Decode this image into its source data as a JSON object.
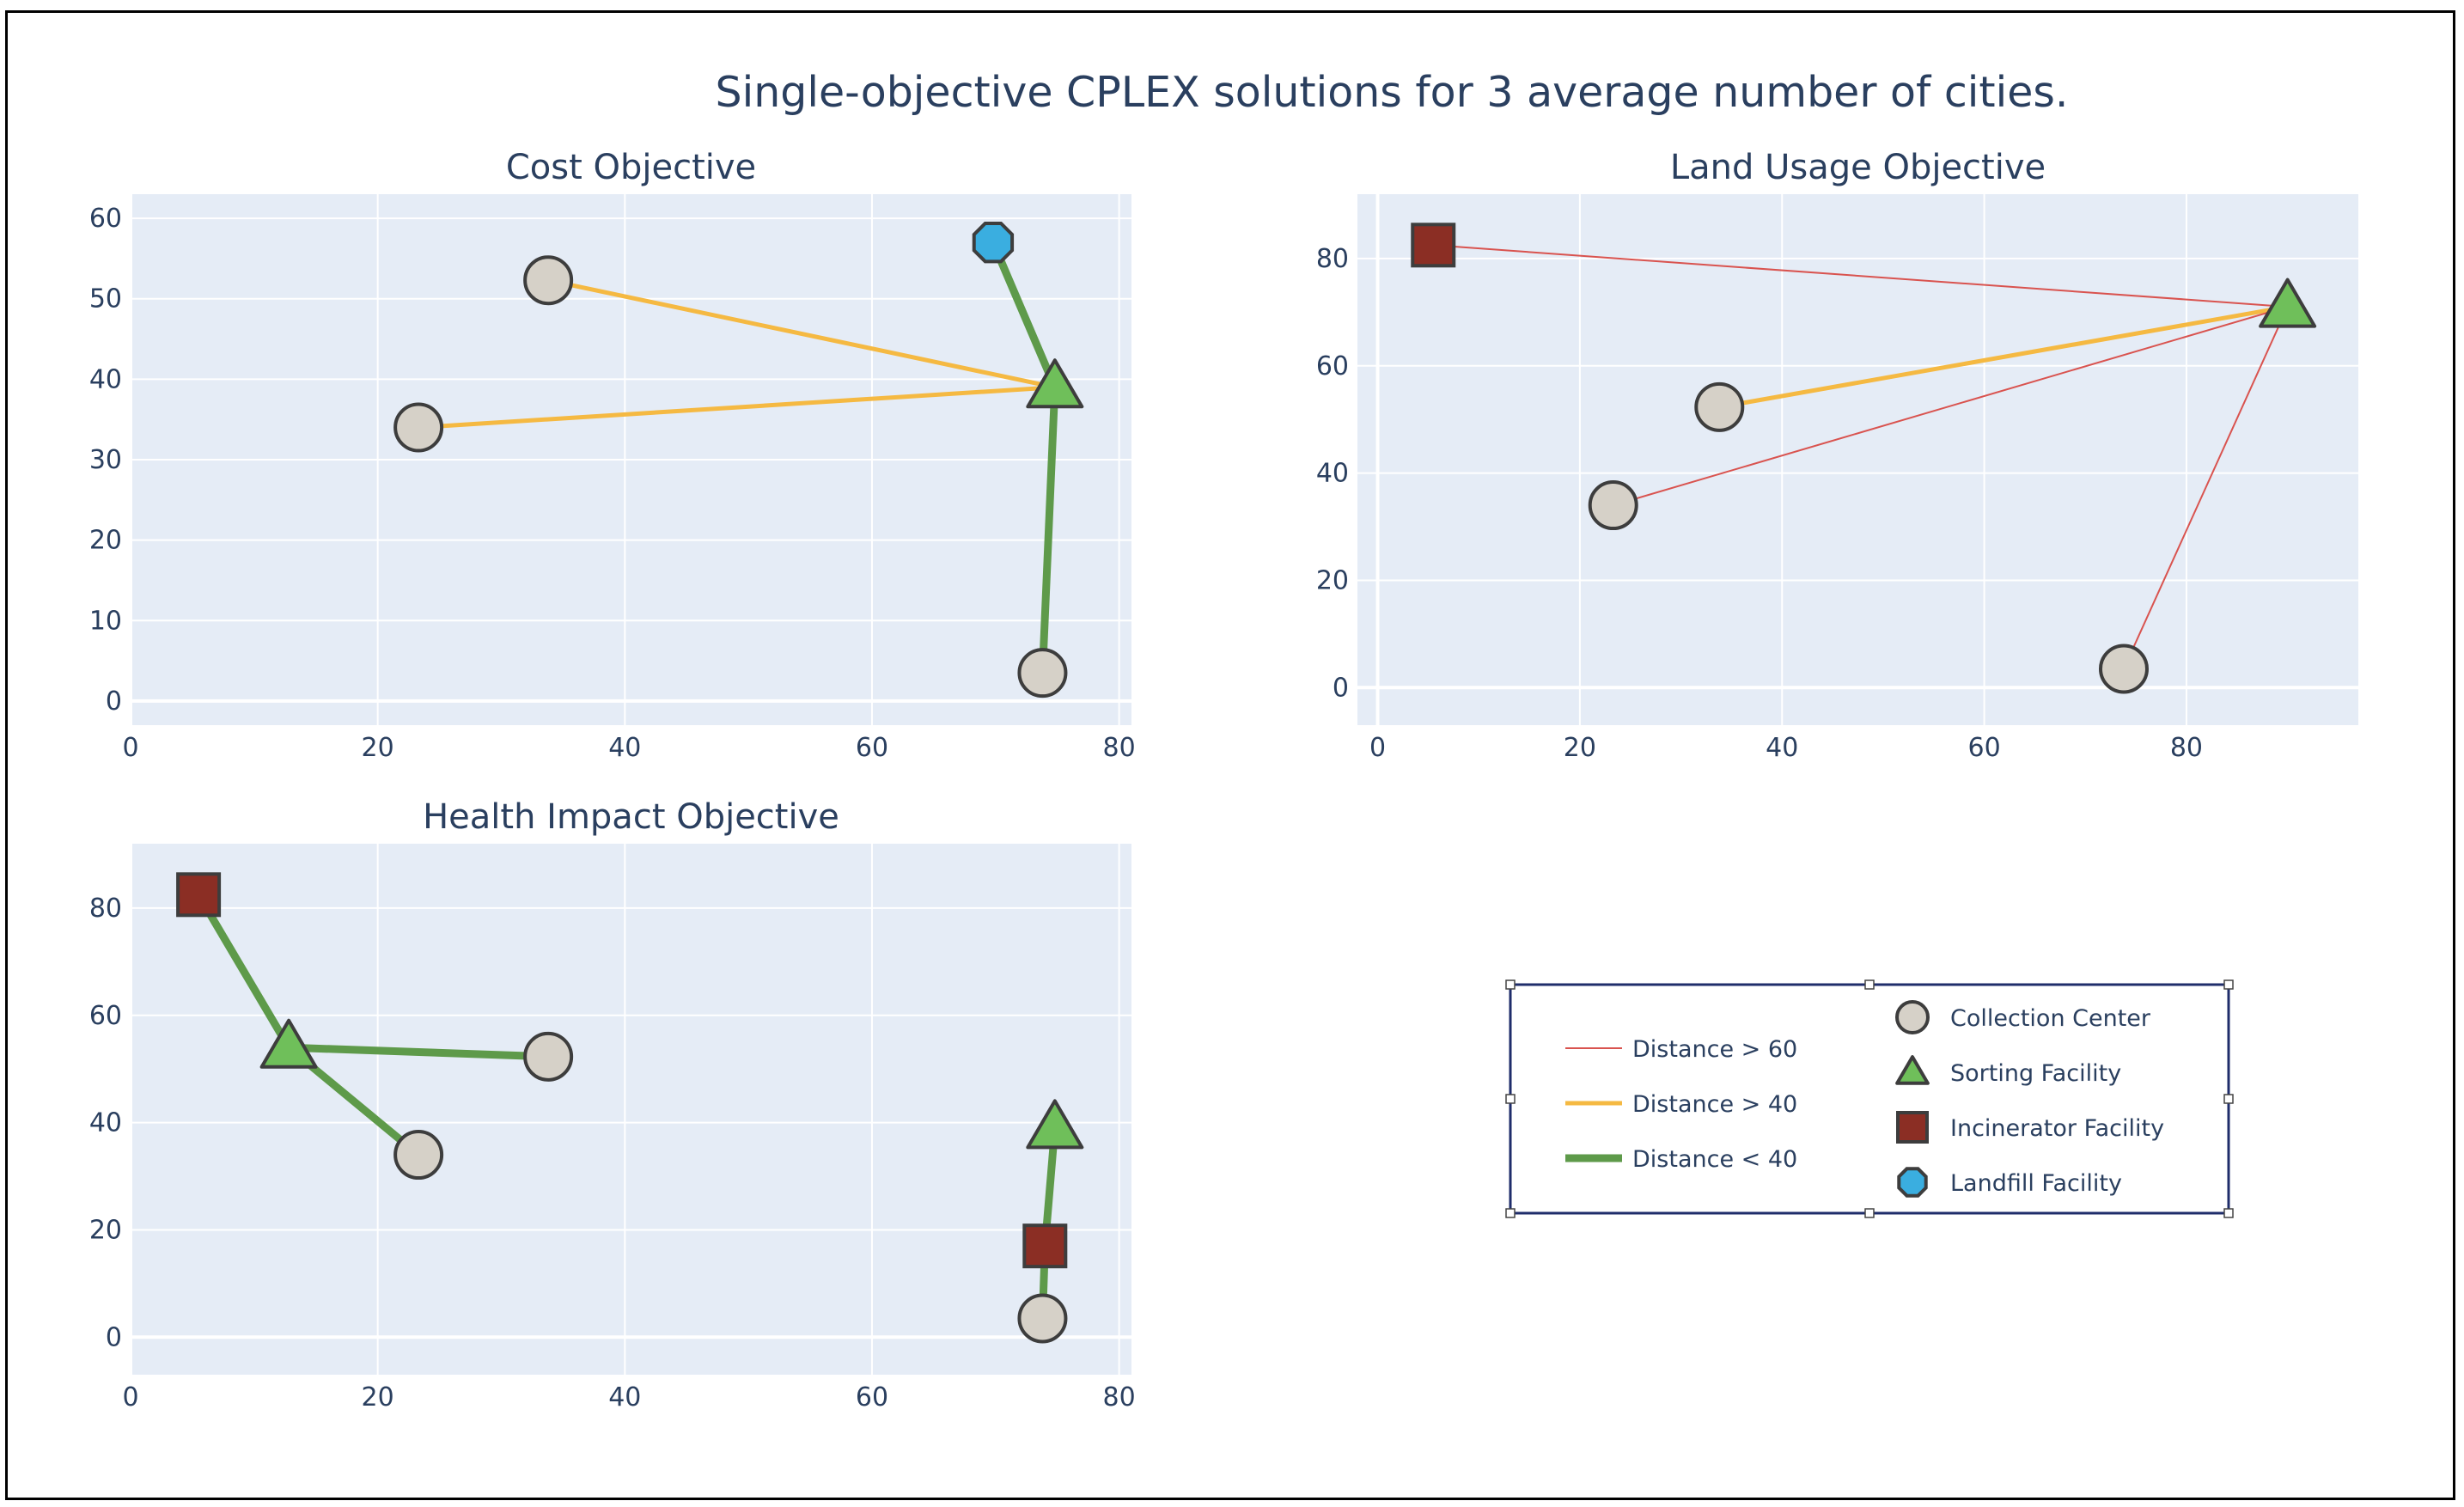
{
  "title": "Single-objective CPLEX solutions for 3 average number of cities.",
  "colors": {
    "plot_bg": "#e5ecf6",
    "grid": "#ffffff",
    "text": "#2a3f5f",
    "distance_gt_60": "#d9534f",
    "distance_gt_40": "#f5b942",
    "distance_lt_40": "#5e9a4a",
    "collection_center": "#d6d1c8",
    "sorting_facility": "#6fbf5a",
    "incinerator_facility": "#8b2e24",
    "landfill_facility": "#3aaee0",
    "marker_outline": "#3d3d3d"
  },
  "legend": {
    "lines": [
      {
        "label": "Distance > 60",
        "key": "distance_gt_60",
        "width": 2
      },
      {
        "label": "Distance > 40",
        "key": "distance_gt_40",
        "width": 5
      },
      {
        "label": "Distance < 40",
        "key": "distance_lt_40",
        "width": 9
      }
    ],
    "markers": [
      {
        "label": "Collection Center",
        "symbol": "circle",
        "key": "collection_center"
      },
      {
        "label": "Sorting Facility",
        "symbol": "triangle",
        "key": "sorting_facility"
      },
      {
        "label": "Incinerator Facility",
        "symbol": "square",
        "key": "incinerator_facility"
      },
      {
        "label": "Landfill Facility",
        "symbol": "octagon",
        "key": "landfill_facility"
      }
    ]
  },
  "chart_data": [
    {
      "type": "scatter",
      "title": "Cost Objective",
      "xlim": [
        0,
        81
      ],
      "ylim": [
        -3,
        63
      ],
      "xticks": [
        0,
        20,
        40,
        60,
        80
      ],
      "yticks": [
        0,
        10,
        20,
        30,
        40,
        50,
        60
      ],
      "links": [
        {
          "from": [
            33.8,
            52.3
          ],
          "to": [
            74.8,
            39.0
          ],
          "class": "distance_gt_40"
        },
        {
          "from": [
            23.3,
            34.0
          ],
          "to": [
            74.8,
            39.0
          ],
          "class": "distance_gt_40"
        },
        {
          "from": [
            69.8,
            57.0
          ],
          "to": [
            74.8,
            39.0
          ],
          "class": "distance_lt_40"
        },
        {
          "from": [
            74.8,
            39.0
          ],
          "to": [
            73.8,
            3.5
          ],
          "class": "distance_lt_40"
        }
      ],
      "points": [
        {
          "x": 33.8,
          "y": 52.3,
          "kind": "collection_center"
        },
        {
          "x": 23.3,
          "y": 34.0,
          "kind": "collection_center"
        },
        {
          "x": 73.8,
          "y": 3.5,
          "kind": "collection_center"
        },
        {
          "x": 74.8,
          "y": 39.0,
          "kind": "sorting_facility"
        },
        {
          "x": 69.8,
          "y": 57.0,
          "kind": "landfill_facility"
        }
      ]
    },
    {
      "type": "scatter",
      "title": "Land Usage Objective",
      "xlim": [
        -2,
        97
      ],
      "ylim": [
        -7,
        92
      ],
      "xticks": [
        0,
        20,
        40,
        60,
        80
      ],
      "yticks": [
        0,
        20,
        40,
        60,
        80
      ],
      "links": [
        {
          "from": [
            5.5,
            82.5
          ],
          "to": [
            90.0,
            71.0
          ],
          "class": "distance_gt_60"
        },
        {
          "from": [
            33.8,
            52.3
          ],
          "to": [
            90.0,
            71.0
          ],
          "class": "distance_gt_40"
        },
        {
          "from": [
            23.3,
            34.0
          ],
          "to": [
            90.0,
            71.0
          ],
          "class": "distance_gt_60"
        },
        {
          "from": [
            73.8,
            3.5
          ],
          "to": [
            90.0,
            71.0
          ],
          "class": "distance_gt_60"
        }
      ],
      "points": [
        {
          "x": 33.8,
          "y": 52.3,
          "kind": "collection_center"
        },
        {
          "x": 23.3,
          "y": 34.0,
          "kind": "collection_center"
        },
        {
          "x": 73.8,
          "y": 3.5,
          "kind": "collection_center"
        },
        {
          "x": 90.0,
          "y": 71.0,
          "kind": "sorting_facility"
        },
        {
          "x": 5.5,
          "y": 82.5,
          "kind": "incinerator_facility"
        }
      ]
    },
    {
      "type": "scatter",
      "title": "Health Impact Objective",
      "xlim": [
        0,
        81
      ],
      "ylim": [
        -7,
        92
      ],
      "xticks": [
        0,
        20,
        40,
        60,
        80
      ],
      "yticks": [
        0,
        20,
        40,
        60,
        80
      ],
      "links": [
        {
          "from": [
            5.5,
            82.5
          ],
          "to": [
            12.8,
            54.0
          ],
          "class": "distance_lt_40"
        },
        {
          "from": [
            12.8,
            54.0
          ],
          "to": [
            33.8,
            52.3
          ],
          "class": "distance_lt_40"
        },
        {
          "from": [
            12.8,
            54.0
          ],
          "to": [
            23.3,
            34.0
          ],
          "class": "distance_lt_40"
        },
        {
          "from": [
            74.8,
            39.0
          ],
          "to": [
            74.0,
            17.0
          ],
          "class": "distance_lt_40"
        },
        {
          "from": [
            74.0,
            17.0
          ],
          "to": [
            73.8,
            3.5
          ],
          "class": "distance_lt_40"
        }
      ],
      "points": [
        {
          "x": 33.8,
          "y": 52.3,
          "kind": "collection_center"
        },
        {
          "x": 23.3,
          "y": 34.0,
          "kind": "collection_center"
        },
        {
          "x": 73.8,
          "y": 3.5,
          "kind": "collection_center"
        },
        {
          "x": 12.8,
          "y": 54.0,
          "kind": "sorting_facility"
        },
        {
          "x": 74.8,
          "y": 39.0,
          "kind": "sorting_facility"
        },
        {
          "x": 5.5,
          "y": 82.5,
          "kind": "incinerator_facility"
        },
        {
          "x": 74.0,
          "y": 17.0,
          "kind": "incinerator_facility"
        }
      ]
    }
  ]
}
